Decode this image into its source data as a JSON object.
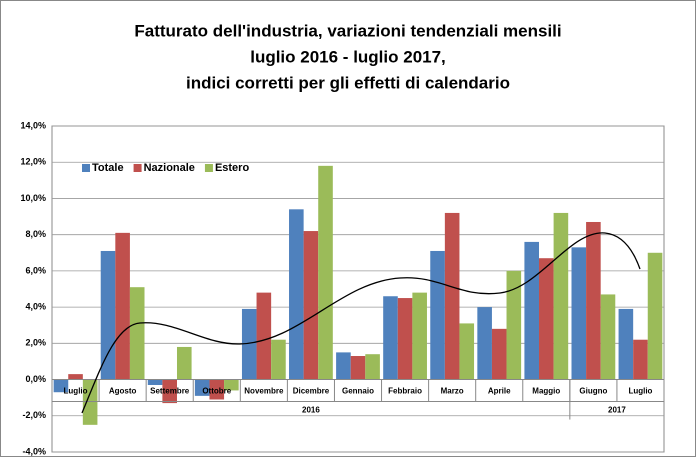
{
  "chart_data": {
    "type": "bar",
    "title": [
      "Fatturato dell'industria, variazioni tendenziali mensili",
      "luglio 2016 - luglio 2017,",
      "indici corretti per gli effetti di calendario"
    ],
    "categories": [
      "Luglio",
      "Agosto",
      "Settembre",
      "Ottobre",
      "Novembre",
      "Dicembre",
      "Gennaio",
      "Febbraio",
      "Marzo",
      "Aprile",
      "Maggio",
      "Giugno",
      "Luglio"
    ],
    "groups": [
      {
        "label": "2016",
        "span": 11
      },
      {
        "label": "2017",
        "span": 2
      }
    ],
    "series": [
      {
        "name": "Totale",
        "color": "#4f81bd",
        "values": [
          -0.7,
          7.1,
          -0.3,
          -0.9,
          3.9,
          9.4,
          1.5,
          4.6,
          7.1,
          4.0,
          7.6,
          7.3,
          3.9
        ]
      },
      {
        "name": "Nazionale",
        "color": "#c0504d",
        "values": [
          0.3,
          8.1,
          -1.3,
          -1.1,
          4.8,
          8.2,
          1.3,
          4.5,
          9.2,
          2.8,
          6.7,
          8.7,
          2.2
        ]
      },
      {
        "name": "Estero",
        "color": "#9bbb59",
        "values": [
          -2.5,
          5.1,
          1.8,
          -0.6,
          2.2,
          11.8,
          1.4,
          4.8,
          3.1,
          6.0,
          9.2,
          4.7,
          7.0
        ]
      }
    ],
    "ylim": [
      -4,
      14
    ],
    "yticks": [
      {
        "value": -4,
        "label": "-4,0%"
      },
      {
        "value": -2,
        "label": "-2,0%"
      },
      {
        "value": 0,
        "label": "0,0%"
      },
      {
        "value": 2,
        "label": "2,0%"
      },
      {
        "value": 4,
        "label": "4,0%"
      },
      {
        "value": 6,
        "label": "6,0%"
      },
      {
        "value": 8,
        "label": "8,0%"
      },
      {
        "value": 10,
        "label": "10,0%"
      },
      {
        "value": 12,
        "label": "12,0%"
      },
      {
        "value": 14,
        "label": "14,0%"
      }
    ],
    "grid": true,
    "legend": "top-left"
  }
}
